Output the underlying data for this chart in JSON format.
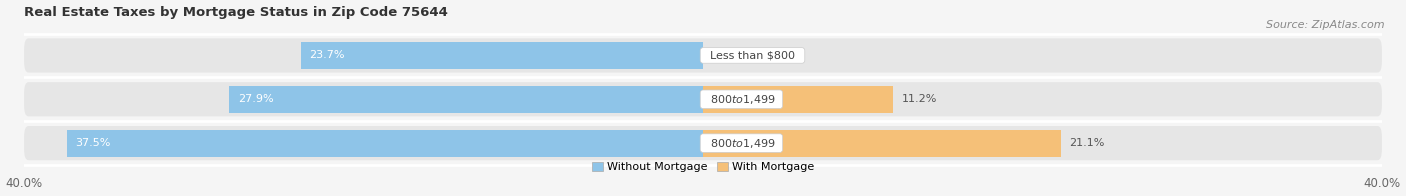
{
  "title": "Real Estate Taxes by Mortgage Status in Zip Code 75644",
  "source": "Source: ZipAtlas.com",
  "rows": [
    {
      "label": "Less than $800",
      "without_mortgage": 23.7,
      "with_mortgage": 0.0
    },
    {
      "label": "$800 to $1,499",
      "without_mortgage": 27.9,
      "with_mortgage": 11.2
    },
    {
      "label": "$800 to $1,499",
      "without_mortgage": 37.5,
      "with_mortgage": 21.1
    }
  ],
  "xlim_left": -40.0,
  "xlim_right": 40.0,
  "total_range": 80.0,
  "color_without": "#8ec4e8",
  "color_with": "#f5c078",
  "color_bg_row": "#e6e6e6",
  "color_bg_fig": "#f5f5f5",
  "bar_height": 0.62,
  "title_fontsize": 9.5,
  "source_fontsize": 8,
  "tick_fontsize": 8.5,
  "label_fontsize": 8,
  "value_fontsize": 8,
  "legend_labels": [
    "Without Mortgage",
    "With Mortgage"
  ]
}
